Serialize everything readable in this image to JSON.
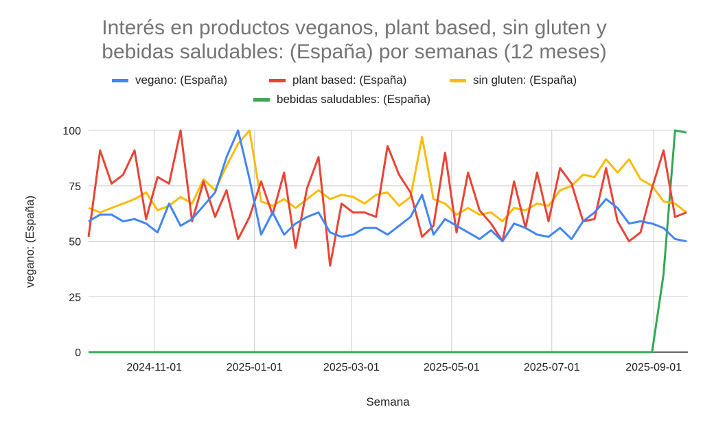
{
  "chart_data": {
    "type": "line",
    "title_lines": [
      "Interés en productos veganos, plant based, sin gluten y",
      "bebidas saludables: (España) por semanas (12 meses)"
    ],
    "xlabel": "Semana",
    "ylabel": "vegano: (España)",
    "ylim": [
      0,
      100
    ],
    "yticks": [
      0,
      25,
      50,
      75,
      100
    ],
    "xticks": [
      "2024-11-01",
      "2025-01-01",
      "2025-03-01",
      "2025-05-01",
      "2025-07-01",
      "2025-09-01"
    ],
    "x_start": "2024-09-22",
    "x_interval": "weekly",
    "grid": true,
    "legend_position": "top",
    "series": [
      {
        "name": "vegano: (España)",
        "color": "#4285F4",
        "values": [
          59,
          62,
          62,
          59,
          60,
          58,
          54,
          67,
          57,
          60,
          66,
          72,
          88,
          100,
          78,
          53,
          63,
          53,
          58,
          61,
          63,
          54,
          52,
          53,
          56,
          56,
          53,
          57,
          61,
          71,
          53,
          60,
          57,
          54,
          51,
          55,
          50,
          58,
          56,
          53,
          52,
          56,
          51,
          59,
          63,
          69,
          65,
          58,
          59,
          58,
          56,
          51,
          50
        ]
      },
      {
        "name": "plant based: (España)",
        "color": "#EA4335",
        "values": [
          52,
          91,
          76,
          80,
          91,
          60,
          79,
          76,
          100,
          59,
          77,
          61,
          73,
          51,
          61,
          77,
          62,
          81,
          47,
          74,
          88,
          39,
          67,
          63,
          63,
          61,
          93,
          80,
          72,
          52,
          57,
          90,
          54,
          81,
          64,
          58,
          50,
          77,
          56,
          81,
          59,
          83,
          76,
          59,
          60,
          83,
          59,
          50,
          54,
          74,
          91,
          61,
          63
        ]
      },
      {
        "name": "sin gluten: (España)",
        "color": "#FBBC04",
        "values": [
          65,
          63,
          65,
          67,
          69,
          72,
          64,
          66,
          70,
          67,
          78,
          73,
          84,
          94,
          100,
          68,
          66,
          69,
          65,
          69,
          73,
          69,
          71,
          70,
          67,
          71,
          72,
          66,
          70,
          97,
          69,
          67,
          62,
          65,
          62,
          63,
          59,
          65,
          64,
          67,
          66,
          73,
          75,
          80,
          79,
          87,
          81,
          87,
          78,
          75,
          68,
          67,
          63
        ]
      },
      {
        "name": "bebidas saludables: (España)",
        "color": "#34A853",
        "values": [
          0,
          0,
          0,
          0,
          0,
          0,
          0,
          0,
          0,
          0,
          0,
          0,
          0,
          0,
          0,
          0,
          0,
          0,
          0,
          0,
          0,
          0,
          0,
          0,
          0,
          0,
          0,
          0,
          0,
          0,
          0,
          0,
          0,
          0,
          0,
          0,
          0,
          0,
          0,
          0,
          0,
          0,
          0,
          0,
          0,
          0,
          0,
          0,
          0,
          0,
          35,
          100,
          99
        ]
      }
    ]
  }
}
